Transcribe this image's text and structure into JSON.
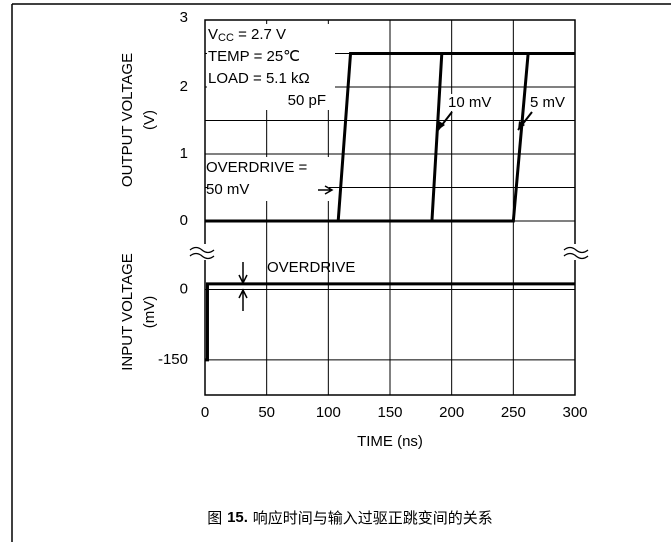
{
  "chart_data": {
    "type": "line",
    "x_label": "TIME (ns)",
    "xlim": [
      0,
      300
    ],
    "xticks": [
      0,
      50,
      100,
      150,
      200,
      250,
      300
    ],
    "output": {
      "y_label": [
        "OUTPUT VOLTAGE",
        "(V)"
      ],
      "ylim": [
        0,
        3
      ],
      "yticks": [
        0,
        1,
        2,
        3
      ],
      "yminor": [
        0.5,
        1.5,
        2.5
      ],
      "series": [
        {
          "name": "50 mV",
          "color": "#000000",
          "x": [
            0,
            108,
            118,
            300
          ],
          "values": [
            0,
            0,
            2.5,
            2.5
          ]
        },
        {
          "name": "10 mV",
          "color": "#000000",
          "x": [
            0,
            184,
            192,
            300
          ],
          "values": [
            0,
            0,
            2.5,
            2.5
          ]
        },
        {
          "name": "5 mV",
          "color": "#000000",
          "x": [
            0,
            250,
            262,
            300
          ],
          "values": [
            0,
            0,
            2.5,
            2.5
          ]
        }
      ]
    },
    "input": {
      "y_label": [
        "INPUT VOLTAGE",
        "(mV)"
      ],
      "ylim": [
        -225,
        95
      ],
      "yticks": [
        0,
        -150
      ],
      "series": [
        {
          "color": "#000000",
          "x": [
            0,
            2,
            2,
            300
          ],
          "values": [
            -150,
            -150,
            12,
            12
          ]
        }
      ]
    },
    "conditions": {
      "vcc": [
        "V",
        "CC",
        " = 2.7 V"
      ],
      "temp": "TEMP = 25℃",
      "load": "LOAD = 5.1 kΩ",
      "cap": "50 pF"
    },
    "overdrive_label": [
      "OVERDRIVE =",
      "50 mV"
    ],
    "overdrive_input": "OVERDRIVE",
    "caption": [
      "图 ",
      "15.",
      " 响应时间与输入过驱正跳变间的关系"
    ]
  }
}
